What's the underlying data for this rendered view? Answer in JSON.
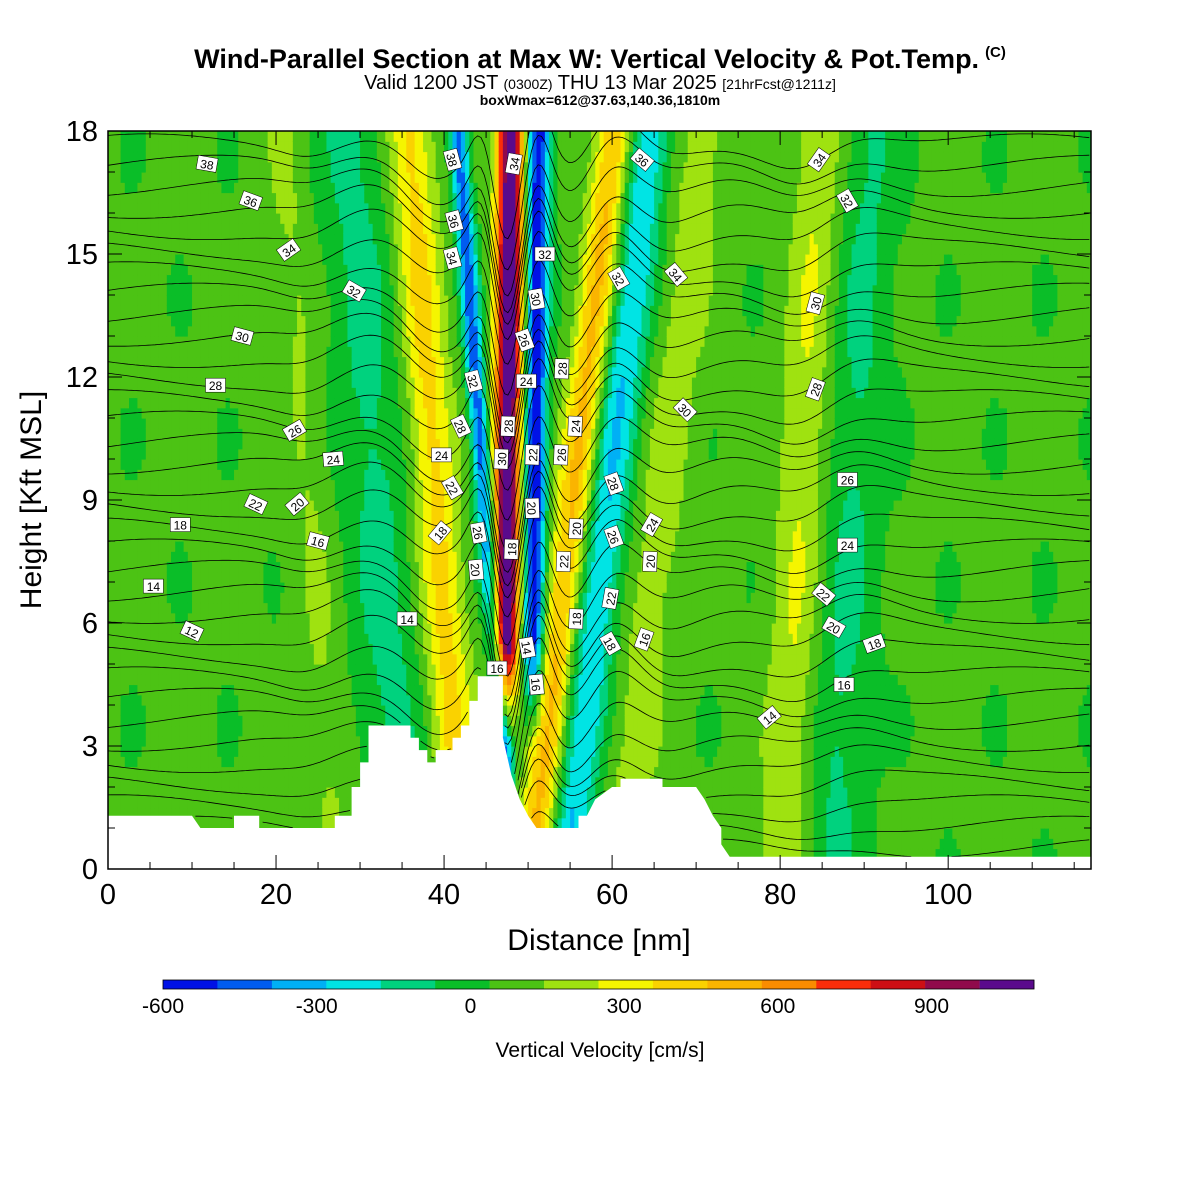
{
  "header": {
    "title": "Wind-Parallel Section at Max W: Vertical Velocity & Pot.Temp.",
    "copyright": "(C)",
    "valid_a": "Valid 1200 JST",
    "valid_z": "(0300Z)",
    "valid_b": "THU 13 Mar 2025",
    "fcst": "[21hrFcst@1211z]",
    "boxinfo": "boxWmax=612@37.63,140.36,1810m"
  },
  "chart_data": {
    "type": "heatmap",
    "title": "Wind-Parallel Section at Max W: Vertical Velocity & Pot.Temp.",
    "xlabel": "Distance [nm]",
    "ylabel": "Height [Kft MSL]",
    "xlim": [
      0,
      117
    ],
    "ylim": [
      0,
      18
    ],
    "xticks": [
      0,
      20,
      40,
      60,
      80,
      100
    ],
    "yticks": [
      0,
      3,
      6,
      9,
      12,
      15,
      18
    ],
    "colorbar": {
      "label": "Vertical Velocity [cm/s]",
      "tick_values": [
        -600,
        -300,
        0,
        300,
        600,
        900
      ],
      "tick_labels": [
        "-600",
        "-300",
        "0",
        "300",
        "600",
        "900"
      ],
      "range": [
        -600,
        1100
      ],
      "step": 100,
      "colors": [
        "#0012e6",
        "#005cf0",
        "#00b0f5",
        "#00e4e4",
        "#00d27e",
        "#0abe28",
        "#4cc314",
        "#9fe210",
        "#f5f500",
        "#fad200",
        "#fab400",
        "#fa8c00",
        "#fa2d0a",
        "#cd0f14",
        "#900a4b",
        "#5a0a8c"
      ]
    },
    "terrain": [
      [
        0,
        1.3
      ],
      [
        10,
        1.3
      ],
      [
        11,
        1.0
      ],
      [
        15,
        1.0
      ],
      [
        15,
        1.3
      ],
      [
        18,
        1.3
      ],
      [
        18,
        1.0
      ],
      [
        27,
        1.0
      ],
      [
        27,
        1.3
      ],
      [
        29,
        1.3
      ],
      [
        29,
        2.0
      ],
      [
        30,
        2.0
      ],
      [
        30,
        2.6
      ],
      [
        31,
        2.6
      ],
      [
        31,
        3.5
      ],
      [
        36,
        3.5
      ],
      [
        36,
        3.2
      ],
      [
        37,
        3.2
      ],
      [
        37,
        2.9
      ],
      [
        38,
        2.9
      ],
      [
        38,
        2.6
      ],
      [
        39,
        2.6
      ],
      [
        39,
        2.9
      ],
      [
        41,
        2.9
      ],
      [
        41,
        3.2
      ],
      [
        42,
        3.2
      ],
      [
        42,
        3.5
      ],
      [
        43,
        3.5
      ],
      [
        43,
        4.1
      ],
      [
        44,
        4.1
      ],
      [
        44,
        4.7
      ],
      [
        47,
        4.7
      ],
      [
        47,
        3.2
      ],
      [
        48,
        2.3
      ],
      [
        49,
        1.7
      ],
      [
        50,
        1.3
      ],
      [
        51,
        1.0
      ],
      [
        56,
        1.0
      ],
      [
        56,
        1.3
      ],
      [
        57,
        1.3
      ],
      [
        58,
        1.7
      ],
      [
        60,
        2.0
      ],
      [
        61,
        2.0
      ],
      [
        61,
        2.2
      ],
      [
        66,
        2.2
      ],
      [
        66,
        2.0
      ],
      [
        70,
        2.0
      ],
      [
        71,
        1.7
      ],
      [
        72,
        1.3
      ],
      [
        73,
        1.0
      ],
      [
        73,
        0.6
      ],
      [
        74,
        0.3
      ],
      [
        117,
        0.3
      ]
    ],
    "velocity_bands": [
      {
        "x": 47.5,
        "w": 1.6,
        "peak": 1050,
        "shape": "updraft"
      },
      {
        "x": 50.8,
        "w": 1.3,
        "peak": -620,
        "shape": "downdraft"
      },
      {
        "x": 44.8,
        "w": 1.1,
        "peak": -480,
        "shape": "downdraft"
      },
      {
        "x": 39.0,
        "w": 2.6,
        "peak": 320,
        "shape": "updraft"
      },
      {
        "x": 55.5,
        "w": 2.2,
        "peak": 420,
        "shape": "updraft"
      },
      {
        "x": 59.5,
        "w": 2.6,
        "peak": -330,
        "shape": "downdraft"
      },
      {
        "x": 66.0,
        "w": 3.0,
        "peak": 140,
        "shape": "updraft"
      },
      {
        "x": 82.5,
        "w": 3.0,
        "peak": 180,
        "shape": "updraft"
      },
      {
        "x": 32.0,
        "w": 4.0,
        "peak": -150,
        "shape": "downdraft"
      },
      {
        "x": 24.0,
        "w": 2.5,
        "peak": 90,
        "shape": "updraft"
      },
      {
        "x": 88.5,
        "w": 3.5,
        "peak": -140,
        "shape": "downdraft"
      }
    ],
    "contour_labels": [
      {
        "text": "38",
        "x": 11.8,
        "y": 17.2,
        "rot": 10
      },
      {
        "text": "36",
        "x": 17.0,
        "y": 16.3,
        "rot": 20
      },
      {
        "text": "34",
        "x": 21.5,
        "y": 15.1,
        "rot": -35
      },
      {
        "text": "32",
        "x": 29.3,
        "y": 14.1,
        "rot": 30
      },
      {
        "text": "30",
        "x": 16.0,
        "y": 13.0,
        "rot": 15
      },
      {
        "text": "28",
        "x": 12.8,
        "y": 11.8,
        "rot": 0
      },
      {
        "text": "26",
        "x": 22.2,
        "y": 10.7,
        "rot": -30
      },
      {
        "text": "24",
        "x": 26.8,
        "y": 10.0,
        "rot": -5
      },
      {
        "text": "22",
        "x": 17.6,
        "y": 8.9,
        "rot": 25
      },
      {
        "text": "20",
        "x": 22.5,
        "y": 8.9,
        "rot": -40
      },
      {
        "text": "18",
        "x": 8.6,
        "y": 8.4,
        "rot": 0
      },
      {
        "text": "16",
        "x": 25.0,
        "y": 8.0,
        "rot": 15
      },
      {
        "text": "14",
        "x": 5.4,
        "y": 6.9,
        "rot": 0
      },
      {
        "text": "12",
        "x": 10.0,
        "y": 5.8,
        "rot": 25
      },
      {
        "text": "14",
        "x": 35.6,
        "y": 6.1,
        "rot": 0
      },
      {
        "text": "18",
        "x": 39.5,
        "y": 8.2,
        "rot": -50
      },
      {
        "text": "22",
        "x": 41.0,
        "y": 9.3,
        "rot": 60
      },
      {
        "text": "24",
        "x": 39.7,
        "y": 10.1,
        "rot": 0
      },
      {
        "text": "28",
        "x": 42.0,
        "y": 10.8,
        "rot": 65
      },
      {
        "text": "32",
        "x": 43.5,
        "y": 11.9,
        "rot": 75
      },
      {
        "text": "34",
        "x": 41.0,
        "y": 14.9,
        "rot": 75
      },
      {
        "text": "36",
        "x": 41.2,
        "y": 15.8,
        "rot": 75
      },
      {
        "text": "38",
        "x": 41.0,
        "y": 17.3,
        "rot": 75
      },
      {
        "text": "26",
        "x": 44.1,
        "y": 8.2,
        "rot": 80
      },
      {
        "text": "20",
        "x": 43.8,
        "y": 7.3,
        "rot": 85
      },
      {
        "text": "16",
        "x": 46.3,
        "y": 4.9,
        "rot": 0
      },
      {
        "text": "30",
        "x": 46.8,
        "y": 10.0,
        "rot": -88
      },
      {
        "text": "28",
        "x": 47.6,
        "y": 10.8,
        "rot": -88
      },
      {
        "text": "18",
        "x": 48.0,
        "y": 7.8,
        "rot": -88
      },
      {
        "text": "34",
        "x": 48.3,
        "y": 17.2,
        "rot": -80
      },
      {
        "text": "26",
        "x": 49.6,
        "y": 12.9,
        "rot": 70
      },
      {
        "text": "24",
        "x": 49.8,
        "y": 11.9,
        "rot": 0
      },
      {
        "text": "30",
        "x": 51.0,
        "y": 13.9,
        "rot": 80
      },
      {
        "text": "22",
        "x": 50.5,
        "y": 10.1,
        "rot": -88
      },
      {
        "text": "20",
        "x": 50.5,
        "y": 8.8,
        "rot": 88
      },
      {
        "text": "32",
        "x": 52.0,
        "y": 15.0,
        "rot": 0
      },
      {
        "text": "14",
        "x": 49.9,
        "y": 5.4,
        "rot": 80
      },
      {
        "text": "16",
        "x": 51.0,
        "y": 4.5,
        "rot": 85
      },
      {
        "text": "26",
        "x": 53.9,
        "y": 10.1,
        "rot": -88
      },
      {
        "text": "28",
        "x": 54.0,
        "y": 12.2,
        "rot": -88
      },
      {
        "text": "24",
        "x": 55.6,
        "y": 10.8,
        "rot": -88
      },
      {
        "text": "22",
        "x": 54.2,
        "y": 7.5,
        "rot": -88
      },
      {
        "text": "20",
        "x": 55.7,
        "y": 8.3,
        "rot": -88
      },
      {
        "text": "18",
        "x": 55.7,
        "y": 6.1,
        "rot": -88
      },
      {
        "text": "32",
        "x": 60.8,
        "y": 14.4,
        "rot": 60
      },
      {
        "text": "28",
        "x": 60.2,
        "y": 9.4,
        "rot": 70
      },
      {
        "text": "26",
        "x": 60.2,
        "y": 8.1,
        "rot": 70
      },
      {
        "text": "22",
        "x": 59.8,
        "y": 6.6,
        "rot": -80
      },
      {
        "text": "18",
        "x": 59.8,
        "y": 5.5,
        "rot": 60
      },
      {
        "text": "20",
        "x": 64.5,
        "y": 7.5,
        "rot": -88
      },
      {
        "text": "16",
        "x": 63.8,
        "y": 5.6,
        "rot": -70
      },
      {
        "text": "24",
        "x": 64.7,
        "y": 8.4,
        "rot": -60
      },
      {
        "text": "36",
        "x": 63.6,
        "y": 17.3,
        "rot": 40
      },
      {
        "text": "34",
        "x": 67.6,
        "y": 14.5,
        "rot": 50
      },
      {
        "text": "30",
        "x": 68.7,
        "y": 11.2,
        "rot": 45
      },
      {
        "text": "14",
        "x": 78.7,
        "y": 3.7,
        "rot": -40
      },
      {
        "text": "34",
        "x": 84.6,
        "y": 17.3,
        "rot": -55
      },
      {
        "text": "32",
        "x": 88.0,
        "y": 16.3,
        "rot": 60
      },
      {
        "text": "30",
        "x": 84.2,
        "y": 13.8,
        "rot": -75
      },
      {
        "text": "28",
        "x": 84.2,
        "y": 11.7,
        "rot": -70
      },
      {
        "text": "26",
        "x": 88.0,
        "y": 9.5,
        "rot": 0
      },
      {
        "text": "24",
        "x": 88.0,
        "y": 7.9,
        "rot": 0
      },
      {
        "text": "22",
        "x": 85.2,
        "y": 6.7,
        "rot": 40
      },
      {
        "text": "20",
        "x": 86.4,
        "y": 5.9,
        "rot": 30
      },
      {
        "text": "18",
        "x": 91.2,
        "y": 5.5,
        "rot": -20
      },
      {
        "text": "16",
        "x": 87.6,
        "y": 4.5,
        "rot": 0
      }
    ]
  }
}
